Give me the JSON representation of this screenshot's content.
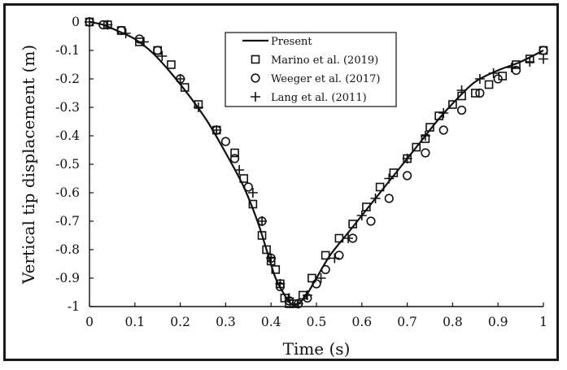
{
  "chart_data": {
    "type": "line",
    "title": "",
    "xlabel": "Time (s)",
    "ylabel": "Vertical tip displacement (m)",
    "xlim": [
      0,
      1
    ],
    "ylim": [
      -1,
      0
    ],
    "xticks": [
      "0",
      "0.1",
      "0.2",
      "0.3",
      "0.4",
      "0.5",
      "0.6",
      "0.7",
      "0.8",
      "0.9",
      "1"
    ],
    "yticks": [
      "0",
      "-0.1",
      "-0.2",
      "-0.3",
      "-0.4",
      "-0.5",
      "-0.6",
      "-0.7",
      "-0.8",
      "-0.9",
      "-1"
    ],
    "grid": false,
    "legend_position": "top-right",
    "series": [
      {
        "name": "Present",
        "marker": "line",
        "x": [
          0,
          0.03,
          0.06,
          0.1,
          0.14,
          0.18,
          0.22,
          0.26,
          0.3,
          0.34,
          0.37,
          0.39,
          0.41,
          0.43,
          0.44,
          0.45,
          0.46,
          0.47,
          0.48,
          0.5,
          0.53,
          0.57,
          0.61,
          0.65,
          0.69,
          0.73,
          0.77,
          0.81,
          0.85,
          0.9,
          0.95,
          1.0
        ],
        "y": [
          0,
          -0.01,
          -0.03,
          -0.06,
          -0.11,
          -0.18,
          -0.26,
          -0.35,
          -0.46,
          -0.58,
          -0.7,
          -0.8,
          -0.9,
          -0.96,
          -0.985,
          -0.995,
          -0.99,
          -0.975,
          -0.955,
          -0.9,
          -0.82,
          -0.74,
          -0.66,
          -0.58,
          -0.5,
          -0.42,
          -0.34,
          -0.27,
          -0.21,
          -0.17,
          -0.14,
          -0.1
        ]
      },
      {
        "name": "Marino et al. (2019)",
        "marker": "square",
        "x": [
          0,
          0.04,
          0.07,
          0.11,
          0.15,
          0.18,
          0.21,
          0.24,
          0.28,
          0.32,
          0.34,
          0.36,
          0.38,
          0.39,
          0.4,
          0.41,
          0.42,
          0.43,
          0.44,
          0.45,
          0.47,
          0.49,
          0.52,
          0.55,
          0.58,
          0.61,
          0.64,
          0.67,
          0.7,
          0.72,
          0.74,
          0.75,
          0.77,
          0.8,
          0.82,
          0.85,
          0.88,
          0.91,
          0.94,
          0.97,
          1.0
        ],
        "y": [
          0,
          -0.01,
          -0.03,
          -0.07,
          -0.1,
          -0.15,
          -0.23,
          -0.29,
          -0.38,
          -0.46,
          -0.55,
          -0.64,
          -0.75,
          -0.8,
          -0.84,
          -0.87,
          -0.92,
          -0.97,
          -0.99,
          -0.99,
          -0.96,
          -0.9,
          -0.82,
          -0.76,
          -0.71,
          -0.65,
          -0.58,
          -0.53,
          -0.48,
          -0.44,
          -0.41,
          -0.37,
          -0.33,
          -0.29,
          -0.26,
          -0.25,
          -0.22,
          -0.19,
          -0.15,
          -0.13,
          -0.1
        ]
      },
      {
        "name": "Weeger et al. (2017)",
        "marker": "circle",
        "x": [
          0,
          0.03,
          0.07,
          0.11,
          0.15,
          0.2,
          0.28,
          0.3,
          0.32,
          0.35,
          0.38,
          0.4,
          0.42,
          0.44,
          0.46,
          0.48,
          0.5,
          0.52,
          0.55,
          0.58,
          0.62,
          0.66,
          0.7,
          0.74,
          0.78,
          0.82,
          0.86,
          0.9,
          0.94,
          1.0
        ],
        "y": [
          0,
          -0.01,
          -0.03,
          -0.06,
          -0.1,
          -0.2,
          -0.38,
          -0.42,
          -0.48,
          -0.58,
          -0.7,
          -0.83,
          -0.93,
          -0.98,
          -0.99,
          -0.97,
          -0.92,
          -0.87,
          -0.82,
          -0.76,
          -0.7,
          -0.62,
          -0.54,
          -0.46,
          -0.38,
          -0.31,
          -0.25,
          -0.2,
          -0.17,
          -0.1
        ]
      },
      {
        "name": "Lang et al. (2011)",
        "marker": "plus",
        "x": [
          0,
          0.04,
          0.08,
          0.12,
          0.16,
          0.2,
          0.24,
          0.28,
          0.33,
          0.36,
          0.38,
          0.4,
          0.42,
          0.44,
          0.46,
          0.48,
          0.51,
          0.54,
          0.57,
          0.6,
          0.63,
          0.66,
          0.7,
          0.74,
          0.78,
          0.82,
          0.86,
          0.89,
          0.93,
          0.97,
          1.0
        ],
        "y": [
          0,
          -0.01,
          -0.04,
          -0.07,
          -0.12,
          -0.2,
          -0.3,
          -0.38,
          -0.52,
          -0.6,
          -0.7,
          -0.83,
          -0.92,
          -0.97,
          -0.99,
          -0.96,
          -0.9,
          -0.83,
          -0.76,
          -0.68,
          -0.62,
          -0.55,
          -0.48,
          -0.4,
          -0.32,
          -0.24,
          -0.2,
          -0.18,
          -0.16,
          -0.14,
          -0.13
        ]
      }
    ]
  }
}
